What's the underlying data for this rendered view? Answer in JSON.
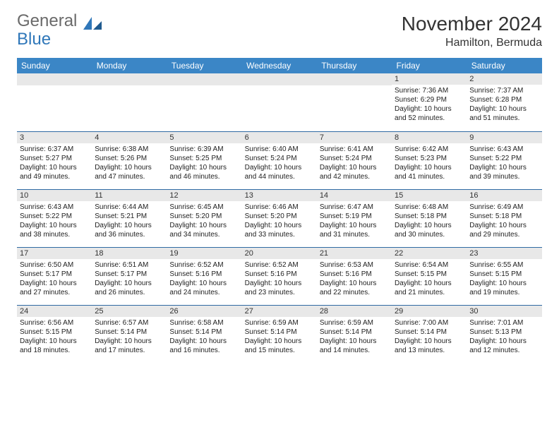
{
  "logo": {
    "part1": "General",
    "part2": "Blue"
  },
  "title": "November 2024",
  "location": "Hamilton, Bermuda",
  "brand_color": "#3b86c6",
  "brand_dark": "#2f6aa3",
  "weekdays": [
    "Sunday",
    "Monday",
    "Tuesday",
    "Wednesday",
    "Thursday",
    "Friday",
    "Saturday"
  ],
  "weeks": [
    [
      null,
      null,
      null,
      null,
      null,
      {
        "d": "1",
        "sr": "7:36 AM",
        "ss": "6:29 PM",
        "dl": "10 hours and 52 minutes."
      },
      {
        "d": "2",
        "sr": "7:37 AM",
        "ss": "6:28 PM",
        "dl": "10 hours and 51 minutes."
      }
    ],
    [
      {
        "d": "3",
        "sr": "6:37 AM",
        "ss": "5:27 PM",
        "dl": "10 hours and 49 minutes."
      },
      {
        "d": "4",
        "sr": "6:38 AM",
        "ss": "5:26 PM",
        "dl": "10 hours and 47 minutes."
      },
      {
        "d": "5",
        "sr": "6:39 AM",
        "ss": "5:25 PM",
        "dl": "10 hours and 46 minutes."
      },
      {
        "d": "6",
        "sr": "6:40 AM",
        "ss": "5:24 PM",
        "dl": "10 hours and 44 minutes."
      },
      {
        "d": "7",
        "sr": "6:41 AM",
        "ss": "5:24 PM",
        "dl": "10 hours and 42 minutes."
      },
      {
        "d": "8",
        "sr": "6:42 AM",
        "ss": "5:23 PM",
        "dl": "10 hours and 41 minutes."
      },
      {
        "d": "9",
        "sr": "6:43 AM",
        "ss": "5:22 PM",
        "dl": "10 hours and 39 minutes."
      }
    ],
    [
      {
        "d": "10",
        "sr": "6:43 AM",
        "ss": "5:22 PM",
        "dl": "10 hours and 38 minutes."
      },
      {
        "d": "11",
        "sr": "6:44 AM",
        "ss": "5:21 PM",
        "dl": "10 hours and 36 minutes."
      },
      {
        "d": "12",
        "sr": "6:45 AM",
        "ss": "5:20 PM",
        "dl": "10 hours and 34 minutes."
      },
      {
        "d": "13",
        "sr": "6:46 AM",
        "ss": "5:20 PM",
        "dl": "10 hours and 33 minutes."
      },
      {
        "d": "14",
        "sr": "6:47 AM",
        "ss": "5:19 PM",
        "dl": "10 hours and 31 minutes."
      },
      {
        "d": "15",
        "sr": "6:48 AM",
        "ss": "5:18 PM",
        "dl": "10 hours and 30 minutes."
      },
      {
        "d": "16",
        "sr": "6:49 AM",
        "ss": "5:18 PM",
        "dl": "10 hours and 29 minutes."
      }
    ],
    [
      {
        "d": "17",
        "sr": "6:50 AM",
        "ss": "5:17 PM",
        "dl": "10 hours and 27 minutes."
      },
      {
        "d": "18",
        "sr": "6:51 AM",
        "ss": "5:17 PM",
        "dl": "10 hours and 26 minutes."
      },
      {
        "d": "19",
        "sr": "6:52 AM",
        "ss": "5:16 PM",
        "dl": "10 hours and 24 minutes."
      },
      {
        "d": "20",
        "sr": "6:52 AM",
        "ss": "5:16 PM",
        "dl": "10 hours and 23 minutes."
      },
      {
        "d": "21",
        "sr": "6:53 AM",
        "ss": "5:16 PM",
        "dl": "10 hours and 22 minutes."
      },
      {
        "d": "22",
        "sr": "6:54 AM",
        "ss": "5:15 PM",
        "dl": "10 hours and 21 minutes."
      },
      {
        "d": "23",
        "sr": "6:55 AM",
        "ss": "5:15 PM",
        "dl": "10 hours and 19 minutes."
      }
    ],
    [
      {
        "d": "24",
        "sr": "6:56 AM",
        "ss": "5:15 PM",
        "dl": "10 hours and 18 minutes."
      },
      {
        "d": "25",
        "sr": "6:57 AM",
        "ss": "5:14 PM",
        "dl": "10 hours and 17 minutes."
      },
      {
        "d": "26",
        "sr": "6:58 AM",
        "ss": "5:14 PM",
        "dl": "10 hours and 16 minutes."
      },
      {
        "d": "27",
        "sr": "6:59 AM",
        "ss": "5:14 PM",
        "dl": "10 hours and 15 minutes."
      },
      {
        "d": "28",
        "sr": "6:59 AM",
        "ss": "5:14 PM",
        "dl": "10 hours and 14 minutes."
      },
      {
        "d": "29",
        "sr": "7:00 AM",
        "ss": "5:14 PM",
        "dl": "10 hours and 13 minutes."
      },
      {
        "d": "30",
        "sr": "7:01 AM",
        "ss": "5:13 PM",
        "dl": "10 hours and 12 minutes."
      }
    ]
  ],
  "labels": {
    "sunrise": "Sunrise:",
    "sunset": "Sunset:",
    "daylight": "Daylight:"
  }
}
